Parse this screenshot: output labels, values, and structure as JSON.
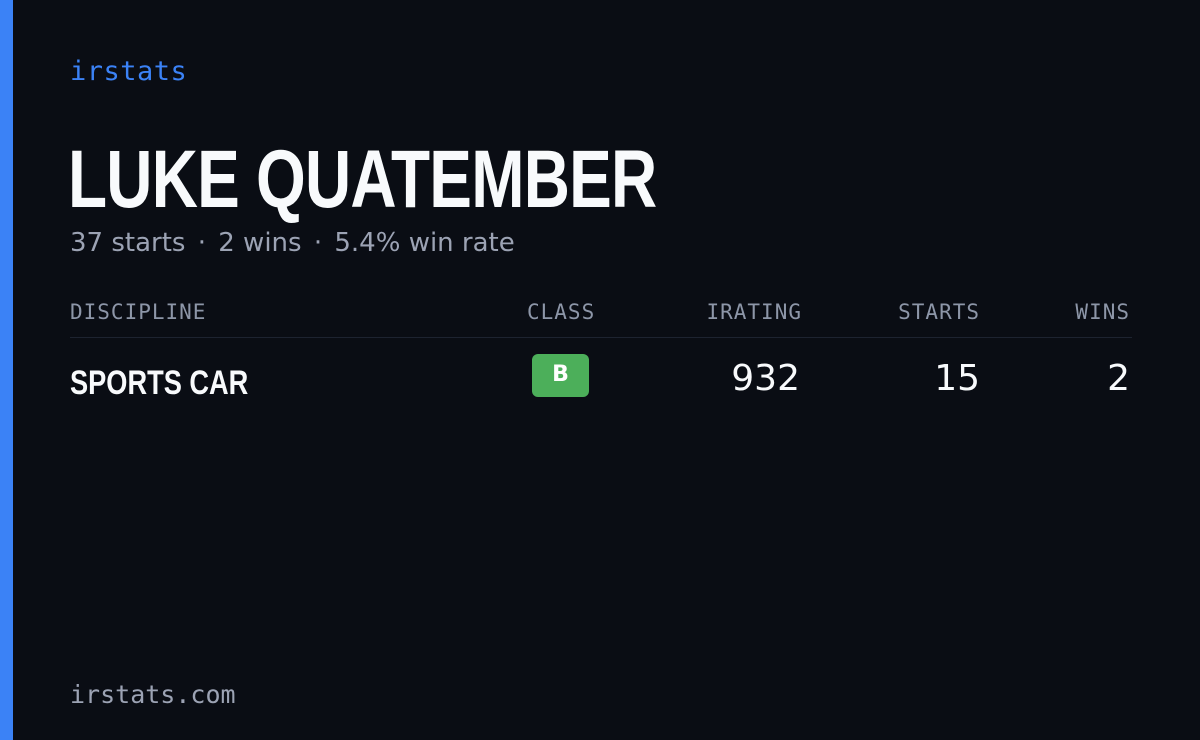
{
  "brand": "irstats",
  "driver": {
    "name": "LUKE QUATEMBER",
    "summary": {
      "starts": "37 starts",
      "wins": "2 wins",
      "win_rate": "5.4% win rate",
      "separator": "·"
    }
  },
  "table": {
    "headers": {
      "discipline": "DISCIPLINE",
      "class": "CLASS",
      "irating": "IRATING",
      "starts": "STARTS",
      "wins": "WINS"
    },
    "rows": [
      {
        "discipline": "SPORTS CAR",
        "class": "B",
        "irating": "932",
        "starts": "15",
        "wins": "2"
      }
    ]
  },
  "footer": "irstats.com",
  "colors": {
    "background": "#0a0d14",
    "accent": "#3b82f6",
    "class_b_badge": "#4caf5a",
    "muted_text": "#9ca3b4"
  }
}
